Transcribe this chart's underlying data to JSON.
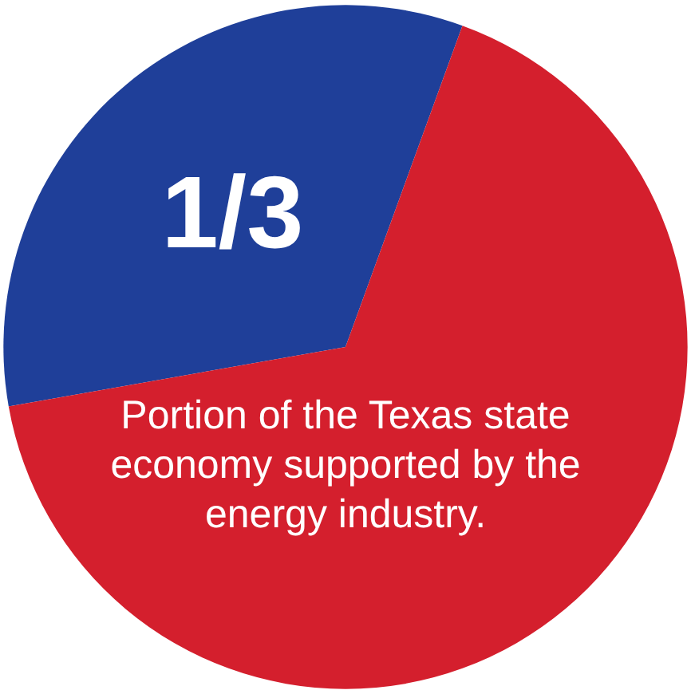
{
  "chart_data": {
    "type": "pie",
    "categories": [
      null,
      null
    ],
    "values": [
      0.3333,
      0.6667
    ],
    "colors": [
      "#1f3f99",
      "#d41f2d"
    ],
    "value_labels": [
      "1/3",
      null
    ],
    "annotations": [
      "Portion of the Texas state economy supported by the energy industry."
    ]
  }
}
